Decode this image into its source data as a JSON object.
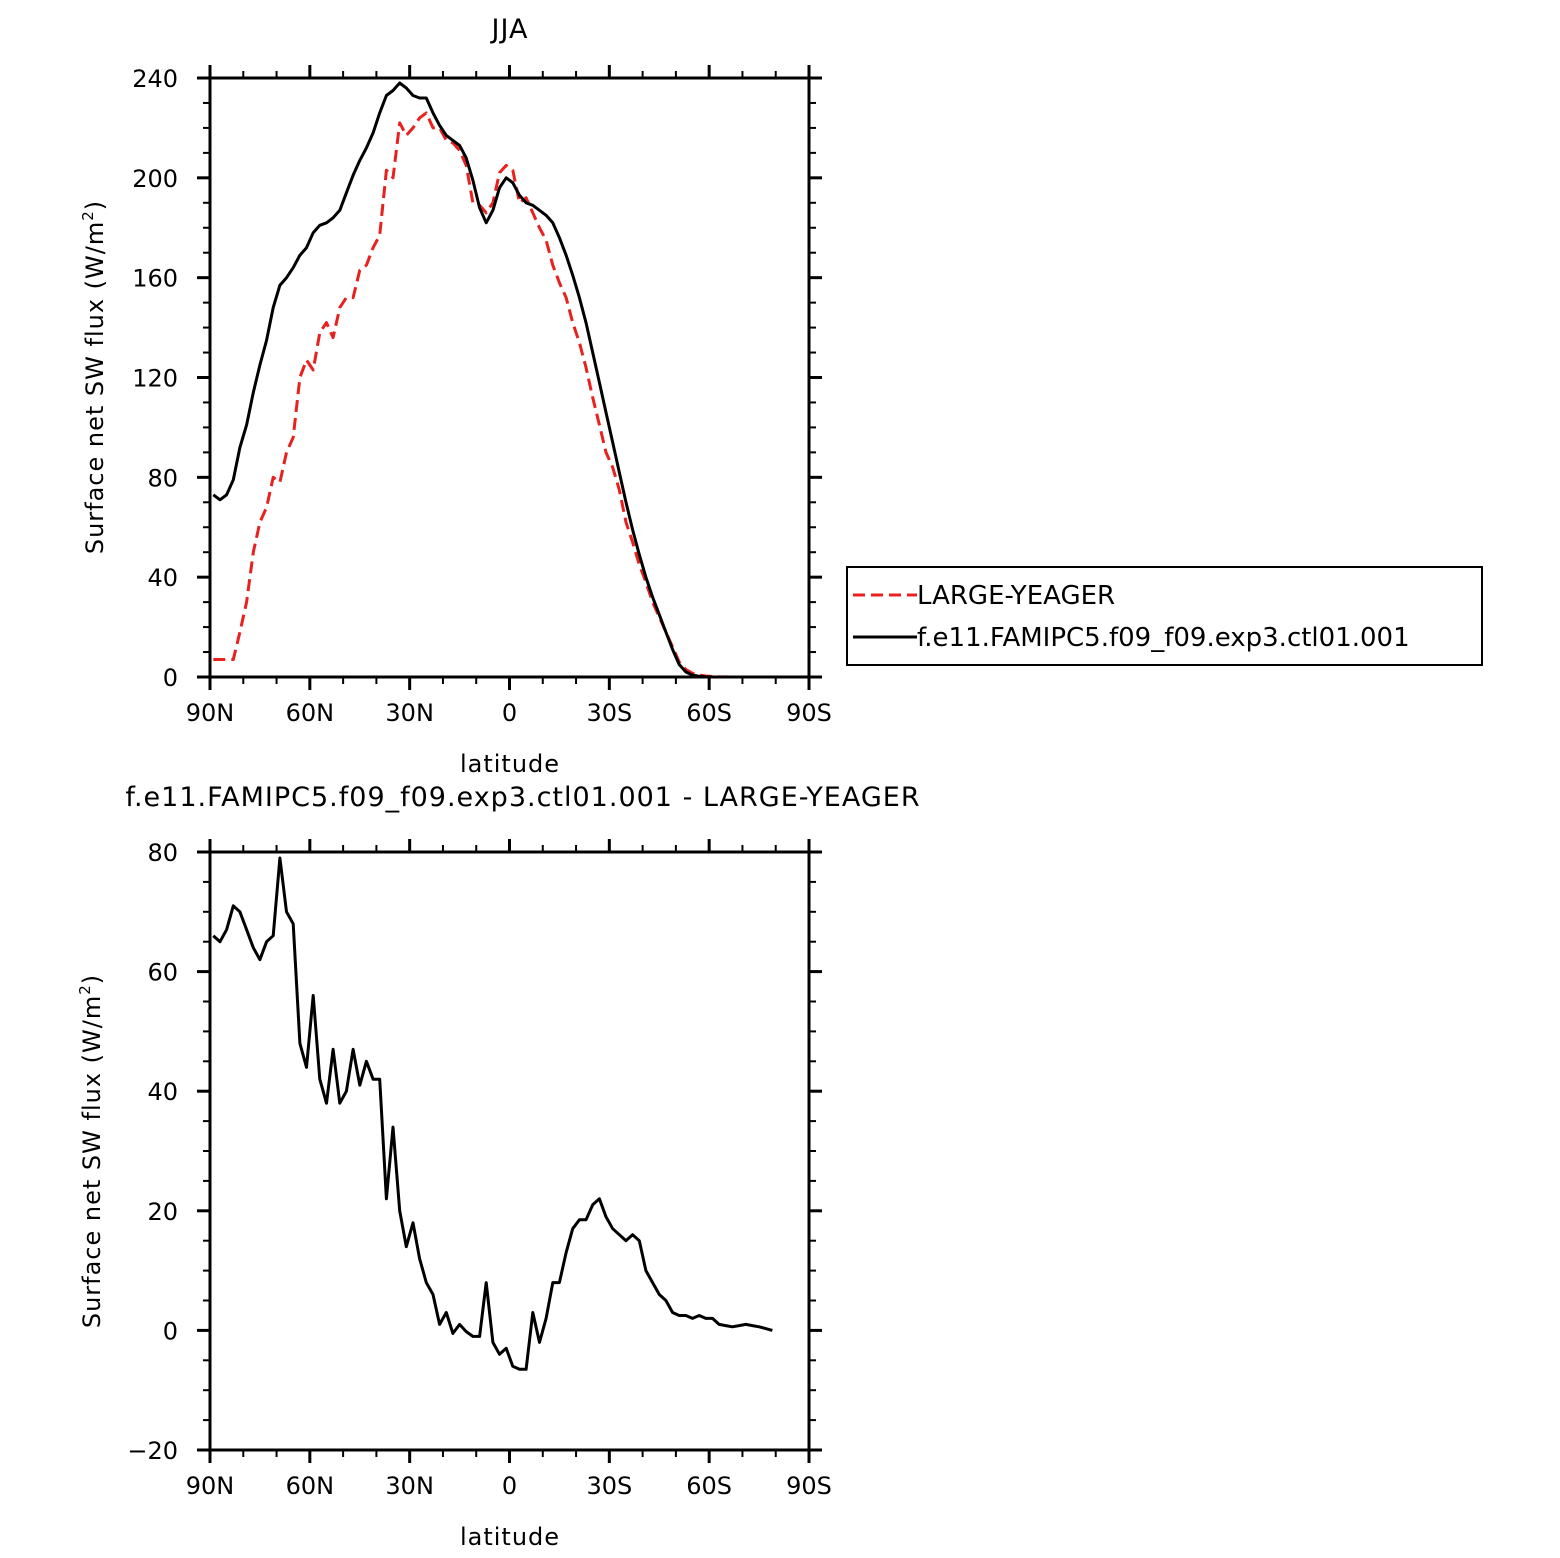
{
  "chart_data": [
    {
      "type": "line",
      "title": "JJA",
      "xlabel": "latitude",
      "ylabel": "Surface net SW flux (W/m²)",
      "ylabel_main": "Surface net SW flux (W/m",
      "ylabel_sup": "2",
      "ylabel_end": ")",
      "xlim": [
        90,
        -90
      ],
      "ylim": [
        0,
        240
      ],
      "xticks": [
        90,
        60,
        30,
        0,
        -30,
        -60,
        -90
      ],
      "xtick_labels": [
        "90N",
        "60N",
        "30N",
        "0",
        "30S",
        "60S",
        "90S"
      ],
      "yticks": [
        0,
        40,
        80,
        120,
        160,
        200,
        240
      ],
      "ytick_labels": [
        "0",
        "40",
        "80",
        "120",
        "160",
        "200",
        "240"
      ],
      "legend_placement": "right",
      "series": [
        {
          "name": "LARGE-YEAGER",
          "color": "#e8211f",
          "dash": "dashed",
          "x": [
            89,
            87,
            85,
            83,
            81,
            79,
            77,
            75,
            73,
            71,
            69,
            67,
            65,
            63,
            61,
            59,
            57,
            55,
            53,
            51,
            49,
            47,
            45,
            43,
            41,
            39,
            37,
            35,
            33,
            31,
            29,
            27,
            25,
            23,
            21,
            19,
            17,
            15,
            13,
            11,
            9,
            7,
            5,
            3,
            1,
            -1,
            -3,
            -5,
            -7,
            -9,
            -11,
            -13,
            -15,
            -17,
            -19,
            -21,
            -23,
            -25,
            -27,
            -29,
            -31,
            -33,
            -35,
            -37,
            -39,
            -41,
            -43,
            -45,
            -47,
            -49,
            -51,
            -53,
            -55,
            -57,
            -59,
            -61,
            -63,
            -65,
            -67,
            -69,
            -71,
            -73,
            -75,
            -77,
            -79
          ],
          "y": [
            7,
            7,
            7,
            7,
            18,
            30,
            50,
            62,
            68,
            80,
            78,
            90,
            96,
            120,
            127,
            123,
            138,
            142,
            136,
            148,
            152,
            152,
            163,
            165,
            172,
            177,
            203,
            200,
            222,
            217,
            220,
            224,
            226,
            220,
            220,
            215,
            214,
            211,
            205,
            190,
            189,
            186,
            190,
            202,
            205,
            203,
            190,
            192,
            186,
            180,
            175,
            165,
            158,
            152,
            142,
            134,
            124,
            112,
            101,
            90,
            84,
            75,
            62,
            54,
            45,
            38,
            30,
            24,
            18,
            12,
            6,
            3,
            1.5,
            0.8,
            0.4,
            0.2,
            0.1,
            0.05,
            0,
            0,
            0,
            0,
            0,
            0,
            0
          ]
        },
        {
          "name": "f.e11.FAMIPC5.f09_f09.exp3.ctl01.001",
          "color": "#000000",
          "dash": "solid",
          "x": [
            89,
            87,
            85,
            83,
            81,
            79,
            77,
            75,
            73,
            71,
            69,
            67,
            65,
            63,
            61,
            59,
            57,
            55,
            53,
            51,
            49,
            47,
            45,
            43,
            41,
            39,
            37,
            35,
            33,
            31,
            29,
            27,
            25,
            23,
            21,
            19,
            17,
            15,
            13,
            11,
            9,
            7,
            5,
            3,
            1,
            -1,
            -3,
            -5,
            -7,
            -9,
            -11,
            -13,
            -15,
            -17,
            -19,
            -21,
            -23,
            -25,
            -27,
            -29,
            -31,
            -33,
            -35,
            -37,
            -39,
            -41,
            -43,
            -45,
            -47,
            -49,
            -51,
            -53,
            -55,
            -57,
            -59,
            -61,
            -63,
            -65,
            -67,
            -69,
            -71,
            -73,
            -75,
            -77,
            -79
          ],
          "y": [
            73,
            71,
            73,
            79,
            92,
            101,
            114,
            125,
            135,
            148,
            157,
            160,
            164,
            169,
            172,
            178,
            181,
            182,
            184,
            187,
            194,
            201,
            207,
            212,
            218,
            226,
            233,
            235,
            238,
            236,
            233,
            232,
            232,
            226,
            221,
            217,
            215,
            213,
            208,
            199,
            188,
            182,
            187,
            196,
            200,
            198,
            193,
            190,
            189,
            187,
            185,
            182,
            176,
            169,
            161,
            152,
            142,
            130,
            118,
            106,
            94,
            82,
            70,
            59,
            49,
            40,
            32,
            25,
            18,
            11,
            5,
            2,
            0.8,
            0.3,
            0.1,
            0,
            0,
            0,
            0,
            0,
            0,
            0,
            0,
            0,
            0
          ]
        }
      ]
    },
    {
      "type": "line",
      "title": "f.e11.FAMIPC5.f09_f09.exp3.ctl01.001 - LARGE-YEAGER",
      "xlabel": "latitude",
      "ylabel": "Surface net SW flux (W/m²)",
      "ylabel_main": "Surface net SW flux (W/m",
      "ylabel_sup": "2",
      "ylabel_end": ")",
      "xlim": [
        90,
        -90
      ],
      "ylim": [
        -20,
        80
      ],
      "xticks": [
        90,
        60,
        30,
        0,
        -30,
        -60,
        -90
      ],
      "xtick_labels": [
        "90N",
        "60N",
        "30N",
        "0",
        "30S",
        "60S",
        "90S"
      ],
      "yticks": [
        -20,
        0,
        20,
        40,
        60,
        80
      ],
      "ytick_labels": [
        "−20",
        "0",
        "20",
        "40",
        "60",
        "80"
      ],
      "series": [
        {
          "color": "#000000",
          "dash": "solid",
          "x": [
            89,
            87,
            85,
            83,
            81,
            79,
            77,
            75,
            73,
            71,
            69,
            67,
            65,
            63,
            61,
            59,
            57,
            55,
            53,
            51,
            49,
            47,
            45,
            43,
            41,
            39,
            37,
            35,
            33,
            31,
            29,
            27,
            25,
            23,
            21,
            19,
            17,
            15,
            13,
            11,
            9,
            7,
            5,
            3,
            1,
            -1,
            -3,
            -5,
            -7,
            -9,
            -11,
            -13,
            -15,
            -17,
            -19,
            -21,
            -23,
            -25,
            -27,
            -29,
            -31,
            -33,
            -35,
            -37,
            -39,
            -41,
            -43,
            -45,
            -47,
            -49,
            -51,
            -53,
            -55,
            -57,
            -59,
            -61,
            -63,
            -65,
            -67,
            -69,
            -71,
            -73,
            -75,
            -77,
            -79
          ],
          "y": [
            66,
            65,
            67,
            71,
            70,
            67,
            64,
            62,
            65,
            66,
            79,
            70,
            68,
            48,
            44,
            56,
            42,
            38,
            47,
            38,
            40,
            47,
            41,
            45,
            42,
            42,
            22,
            34,
            20,
            14,
            18,
            12,
            8,
            6,
            1,
            3,
            -0.5,
            1,
            -0.2,
            -1,
            -1,
            8,
            -2,
            -4,
            -3,
            -6,
            -6.5,
            -6.5,
            3,
            -2,
            2,
            8,
            8,
            13,
            17,
            18.5,
            18.5,
            21,
            22,
            19,
            17,
            16,
            15,
            16,
            15,
            10,
            8,
            6,
            5,
            3,
            2.5,
            2.5,
            2,
            2.5,
            2,
            2,
            1,
            0.8,
            0.6,
            0.8,
            1,
            0.8,
            0.6,
            0.3,
            0
          ]
        }
      ]
    }
  ]
}
